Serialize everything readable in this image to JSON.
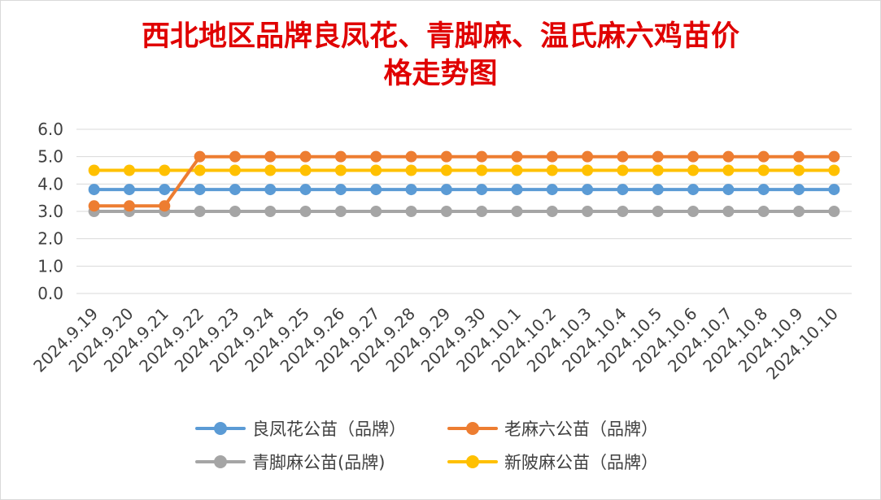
{
  "title": {
    "line1": "西北地区品牌良凤花、青脚麻、温氏麻六鸡苗价",
    "line2": "格走势图"
  },
  "chart_data": {
    "type": "line",
    "title": "西北地区品牌良凤花、青脚麻、温氏麻六鸡苗价格走势图",
    "xlabel": "",
    "ylabel": "",
    "ylim": [
      0,
      6
    ],
    "yticks": [
      "0.0",
      "1.0",
      "2.0",
      "3.0",
      "4.0",
      "5.0",
      "6.0"
    ],
    "grid": true,
    "legend_position": "bottom",
    "categories": [
      "2024.9.19",
      "2024.9.20",
      "2024.9.21",
      "2024.9.22",
      "2024.9.23",
      "2024.9.24",
      "2024.9.25",
      "2024.9.26",
      "2024.9.27",
      "2024.9.28",
      "2024.9.29",
      "2024.9.30",
      "2024.10.1",
      "2024.10.2",
      "2024.10.3",
      "2024.10.4",
      "2024.10.5",
      "2024.10.6",
      "2024.10.7",
      "2024.10.8",
      "2024.10.9",
      "2024.10.10"
    ],
    "series": [
      {
        "name": "良凤花公苗（品牌）",
        "color": "#5b9bd5",
        "values": [
          3.8,
          3.8,
          3.8,
          3.8,
          3.8,
          3.8,
          3.8,
          3.8,
          3.8,
          3.8,
          3.8,
          3.8,
          3.8,
          3.8,
          3.8,
          3.8,
          3.8,
          3.8,
          3.8,
          3.8,
          3.8,
          3.8
        ]
      },
      {
        "name": "老麻六公苗（品牌）",
        "color": "#ed7d31",
        "values": [
          3.2,
          3.2,
          3.2,
          5.0,
          5.0,
          5.0,
          5.0,
          5.0,
          5.0,
          5.0,
          5.0,
          5.0,
          5.0,
          5.0,
          5.0,
          5.0,
          5.0,
          5.0,
          5.0,
          5.0,
          5.0,
          5.0
        ]
      },
      {
        "name": "青脚麻公苗(品牌)",
        "color": "#a5a5a5",
        "values": [
          3.0,
          3.0,
          3.0,
          3.0,
          3.0,
          3.0,
          3.0,
          3.0,
          3.0,
          3.0,
          3.0,
          3.0,
          3.0,
          3.0,
          3.0,
          3.0,
          3.0,
          3.0,
          3.0,
          3.0,
          3.0,
          3.0
        ]
      },
      {
        "name": "新陂麻公苗（品牌）",
        "color": "#ffc000",
        "values": [
          4.5,
          4.5,
          4.5,
          4.5,
          4.5,
          4.5,
          4.5,
          4.5,
          4.5,
          4.5,
          4.5,
          4.5,
          4.5,
          4.5,
          4.5,
          4.5,
          4.5,
          4.5,
          4.5,
          4.5,
          4.5,
          4.5
        ]
      }
    ]
  }
}
